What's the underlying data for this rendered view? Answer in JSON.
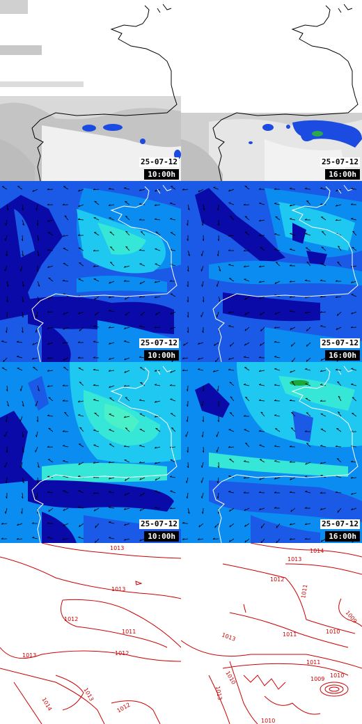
{
  "panels": [
    {
      "id": "cloud-1000",
      "date": "25-07-12",
      "time": "10:00h"
    },
    {
      "id": "cloud-1600",
      "date": "25-07-12",
      "time": "16:00h"
    },
    {
      "id": "wind-low-1000",
      "date": "25-07-12",
      "time": "10:00h"
    },
    {
      "id": "wind-low-1600",
      "date": "25-07-12",
      "time": "16:00h"
    },
    {
      "id": "wind-high-1000",
      "date": "25-07-12",
      "time": "10:00h"
    },
    {
      "id": "wind-high-1600",
      "date": "25-07-12",
      "time": "16:00h"
    }
  ],
  "pressure_left": [
    "1013",
    "1013",
    "1012",
    "1011",
    "1013",
    "1012",
    "1014",
    "1013",
    "1012"
  ],
  "pressure_right": [
    "1014",
    "1013",
    "1012",
    "1011",
    "1009",
    "1013",
    "1011",
    "1010",
    "1011",
    "1010",
    "1009",
    "1010",
    "1013",
    "1010"
  ],
  "colors": {
    "wind_dark": "#0a0aa8",
    "wind_mid": "#1b5ae6",
    "wind_light": "#0b8cf0",
    "wind_cyan": "#1ec8f0",
    "wind_pale": "#36e6d6",
    "isobar": "#cc0000",
    "rain": "#1b4be0"
  }
}
